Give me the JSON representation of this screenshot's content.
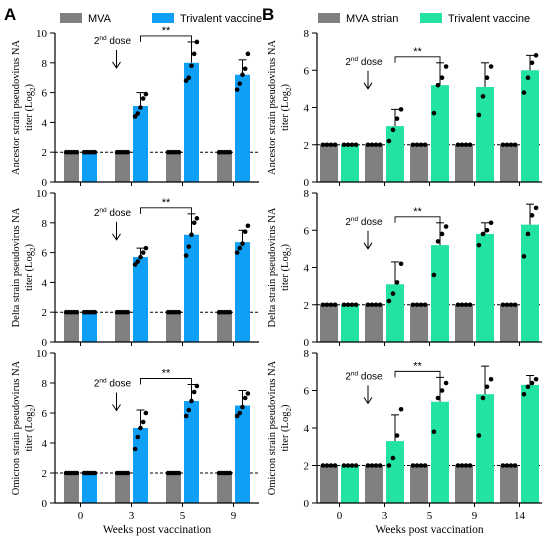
{
  "chart_data": [
    {
      "type": "bar",
      "panel": "A",
      "legend": [
        "MVA",
        "Trivalent vaccine"
      ],
      "ylabel": "Ancestor strain pseudovirus NA titer (Log2)",
      "xlabel": "",
      "ylim": [
        0,
        10
      ],
      "yticks": [
        0,
        2,
        4,
        6,
        8,
        10
      ],
      "categories": [
        "0",
        "3",
        "5",
        "9"
      ],
      "threshold": 2,
      "annotation": "2nd dose",
      "significance": "**",
      "series": [
        {
          "name": "MVA",
          "values": [
            2,
            2,
            2,
            2
          ],
          "errors": [
            0,
            0,
            0,
            0
          ],
          "points": [
            [
              2,
              2,
              2,
              2,
              2
            ],
            [
              2,
              2,
              2,
              2,
              2
            ],
            [
              2,
              2,
              2,
              2,
              2
            ],
            [
              2,
              2,
              2,
              2,
              2
            ]
          ]
        },
        {
          "name": "Trivalent vaccine",
          "values": [
            2,
            5.1,
            8.0,
            7.2
          ],
          "errors": [
            0,
            0.9,
            1.4,
            1.0
          ],
          "points": [
            [
              2,
              2,
              2,
              2,
              2
            ],
            [
              4.4,
              4.6,
              5.0,
              5.6,
              5.9
            ],
            [
              6.8,
              7.0,
              7.8,
              8.6,
              9.4
            ],
            [
              6.2,
              6.6,
              7.2,
              7.6,
              8.6
            ]
          ]
        }
      ]
    },
    {
      "type": "bar",
      "panel": "A",
      "ylabel": "Delta strain pseudovirus NA titer (Log2)",
      "xlabel": "",
      "ylim": [
        0,
        10
      ],
      "yticks": [
        0,
        2,
        4,
        6,
        8,
        10
      ],
      "categories": [
        "0",
        "3",
        "5",
        "9"
      ],
      "threshold": 2,
      "annotation": "2nd dose",
      "significance": "**",
      "series": [
        {
          "name": "MVA",
          "values": [
            2,
            2,
            2,
            2
          ],
          "errors": [
            0,
            0,
            0,
            0
          ],
          "points": [
            [
              2,
              2,
              2,
              2,
              2
            ],
            [
              2,
              2,
              2,
              2,
              2
            ],
            [
              2,
              2,
              2,
              2,
              2
            ],
            [
              2,
              2,
              2,
              2,
              2
            ]
          ]
        },
        {
          "name": "Trivalent vaccine",
          "values": [
            2,
            5.7,
            7.2,
            6.7
          ],
          "errors": [
            0,
            0.6,
            1.4,
            0.8
          ],
          "points": [
            [
              2,
              2,
              2,
              2,
              2
            ],
            [
              5.2,
              5.4,
              5.7,
              6.0,
              6.3
            ],
            [
              5.8,
              6.4,
              7.2,
              8.0,
              8.3
            ],
            [
              6.0,
              6.3,
              6.6,
              7.4,
              7.8
            ]
          ]
        }
      ]
    },
    {
      "type": "bar",
      "panel": "A",
      "ylabel": "Omicron strain pseudovirus NA titer (Log2)",
      "xlabel": "Weeks post vaccination",
      "ylim": [
        0,
        10
      ],
      "yticks": [
        0,
        2,
        4,
        6,
        8,
        10
      ],
      "categories": [
        "0",
        "3",
        "5",
        "9"
      ],
      "threshold": 2,
      "annotation": "2nd dose",
      "significance": "**",
      "series": [
        {
          "name": "MVA",
          "values": [
            2,
            2,
            2,
            2
          ],
          "errors": [
            0,
            0,
            0,
            0
          ],
          "points": [
            [
              2,
              2,
              2,
              2,
              2
            ],
            [
              2,
              2,
              2,
              2,
              2
            ],
            [
              2,
              2,
              2,
              2,
              2
            ],
            [
              2,
              2,
              2,
              2,
              2
            ]
          ]
        },
        {
          "name": "Trivalent vaccine",
          "values": [
            2,
            5.0,
            6.8,
            6.5
          ],
          "errors": [
            0,
            1.2,
            1.1,
            1.0
          ],
          "points": [
            [
              2,
              2,
              2,
              2,
              2
            ],
            [
              3.6,
              4.4,
              5.0,
              5.4,
              6.0
            ],
            [
              5.8,
              6.2,
              6.8,
              7.4,
              7.8
            ],
            [
              5.8,
              6.0,
              6.4,
              7.0,
              7.3
            ]
          ]
        }
      ]
    },
    {
      "type": "bar",
      "panel": "B",
      "legend": [
        "MVA strian",
        "Trivalent vaccine"
      ],
      "ylabel": "Ancestor strain pseudovirus NA titer (Log2)",
      "xlabel": "",
      "ylim": [
        0,
        8
      ],
      "yticks": [
        0,
        2,
        4,
        6,
        8
      ],
      "categories": [
        "0",
        "3",
        "5",
        "9",
        "14"
      ],
      "threshold": 2,
      "annotation": "2nd dose",
      "significance": "**",
      "series": [
        {
          "name": "MVA strian",
          "values": [
            2,
            2,
            2,
            2,
            2
          ],
          "errors": [
            0,
            0,
            0,
            0,
            0
          ],
          "points": [
            [
              2,
              2,
              2,
              2
            ],
            [
              2,
              2,
              2,
              2
            ],
            [
              2,
              2,
              2,
              2
            ],
            [
              2,
              2,
              2,
              2
            ],
            [
              2,
              2,
              2,
              2
            ]
          ]
        },
        {
          "name": "Trivalent vaccine",
          "values": [
            2,
            3.0,
            5.2,
            5.1,
            6.0
          ],
          "errors": [
            0,
            0.9,
            1.2,
            1.3,
            0.8
          ],
          "points": [
            [
              2,
              2,
              2,
              2
            ],
            [
              2.2,
              2.8,
              3.4,
              3.9
            ],
            [
              3.7,
              5.2,
              5.6,
              6.2
            ],
            [
              3.6,
              4.6,
              5.6,
              6.2
            ],
            [
              4.8,
              5.6,
              6.4,
              6.8
            ]
          ]
        }
      ]
    },
    {
      "type": "bar",
      "panel": "B",
      "ylabel": "Delta strain pseudovirus NA titer (Log2)",
      "xlabel": "",
      "ylim": [
        0,
        8
      ],
      "yticks": [
        0,
        2,
        4,
        6,
        8
      ],
      "categories": [
        "0",
        "3",
        "5",
        "9",
        "14"
      ],
      "threshold": 2,
      "annotation": "2nd dose",
      "significance": "**",
      "series": [
        {
          "name": "MVA strian",
          "values": [
            2,
            2,
            2,
            2,
            2
          ],
          "errors": [
            0,
            0,
            0,
            0,
            0
          ],
          "points": [
            [
              2,
              2,
              2,
              2
            ],
            [
              2,
              2,
              2,
              2
            ],
            [
              2,
              2,
              2,
              2
            ],
            [
              2,
              2,
              2,
              2
            ],
            [
              2,
              2,
              2,
              2
            ]
          ]
        },
        {
          "name": "Trivalent vaccine",
          "values": [
            2,
            3.1,
            5.2,
            5.8,
            6.3
          ],
          "errors": [
            0,
            1.2,
            1.2,
            0.6,
            1.1
          ],
          "points": [
            [
              2,
              2,
              2,
              2
            ],
            [
              2.2,
              2.6,
              3.2,
              4.2
            ],
            [
              3.6,
              5.4,
              5.8,
              6.2
            ],
            [
              5.2,
              5.8,
              6.0,
              6.4
            ],
            [
              4.6,
              5.8,
              6.8,
              7.2
            ]
          ]
        }
      ]
    },
    {
      "type": "bar",
      "panel": "B",
      "ylabel": "Omicron strain pseudovirus NA titer (Log2)",
      "xlabel": "Weeks post vaccination",
      "ylim": [
        0,
        8
      ],
      "yticks": [
        0,
        2,
        4,
        6,
        8
      ],
      "categories": [
        "0",
        "3",
        "5",
        "9",
        "14"
      ],
      "threshold": 2,
      "annotation": "2nd dose",
      "significance": "**",
      "series": [
        {
          "name": "MVA strian",
          "values": [
            2,
            2,
            2,
            2,
            2
          ],
          "errors": [
            0,
            0,
            0,
            0,
            0
          ],
          "points": [
            [
              2,
              2,
              2,
              2
            ],
            [
              2,
              2,
              2,
              2
            ],
            [
              2,
              2,
              2,
              2
            ],
            [
              2,
              2,
              2,
              2
            ],
            [
              2,
              2,
              2,
              2
            ]
          ]
        },
        {
          "name": "Trivalent vaccine",
          "values": [
            2,
            3.3,
            5.4,
            5.8,
            6.3
          ],
          "errors": [
            0,
            1.4,
            1.3,
            1.5,
            0.5
          ],
          "points": [
            [
              2,
              2,
              2,
              2
            ],
            [
              2.0,
              2.4,
              3.6,
              5.0
            ],
            [
              3.8,
              5.6,
              6.0,
              6.4
            ],
            [
              3.6,
              5.6,
              6.2,
              6.6
            ],
            [
              5.8,
              6.2,
              6.4,
              6.6
            ]
          ]
        }
      ]
    }
  ],
  "labels": {
    "panel_a": "A",
    "panel_b": "B",
    "log_sub": "2"
  },
  "colors": {
    "mva": "#808080",
    "vaccine_a": "#0f9ff5",
    "vaccine_b": "#22e3a1",
    "axis": "#000000"
  }
}
